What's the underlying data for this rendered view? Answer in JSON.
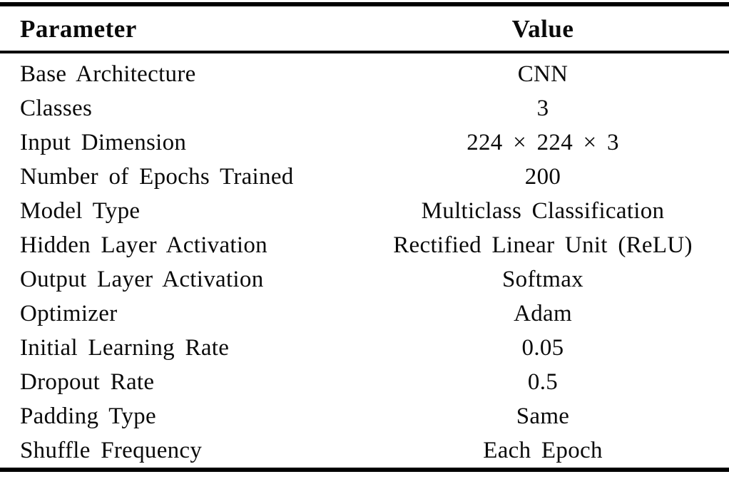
{
  "table": {
    "headers": {
      "parameter": "Parameter",
      "value": "Value"
    },
    "rows": [
      {
        "parameter": "Base Architecture",
        "value": "CNN"
      },
      {
        "parameter": "Classes",
        "value": "3"
      },
      {
        "parameter": "Input Dimension",
        "value": "224 × 224 × 3"
      },
      {
        "parameter": "Number of Epochs Trained",
        "value": "200"
      },
      {
        "parameter": "Model Type",
        "value": "Multiclass Classification"
      },
      {
        "parameter": "Hidden Layer Activation",
        "value": "Rectified Linear Unit (ReLU)"
      },
      {
        "parameter": "Output Layer Activation",
        "value": "Softmax"
      },
      {
        "parameter": "Optimizer",
        "value": "Adam"
      },
      {
        "parameter": "Initial Learning Rate",
        "value": "0.05"
      },
      {
        "parameter": "Dropout Rate",
        "value": "0.5"
      },
      {
        "parameter": "Padding Type",
        "value": "Same"
      },
      {
        "parameter": "Shuffle Frequency",
        "value": "Each Epoch"
      }
    ],
    "colors": {
      "text": "#0a0a0a",
      "rule": "#000000",
      "background": "#ffffff"
    }
  }
}
